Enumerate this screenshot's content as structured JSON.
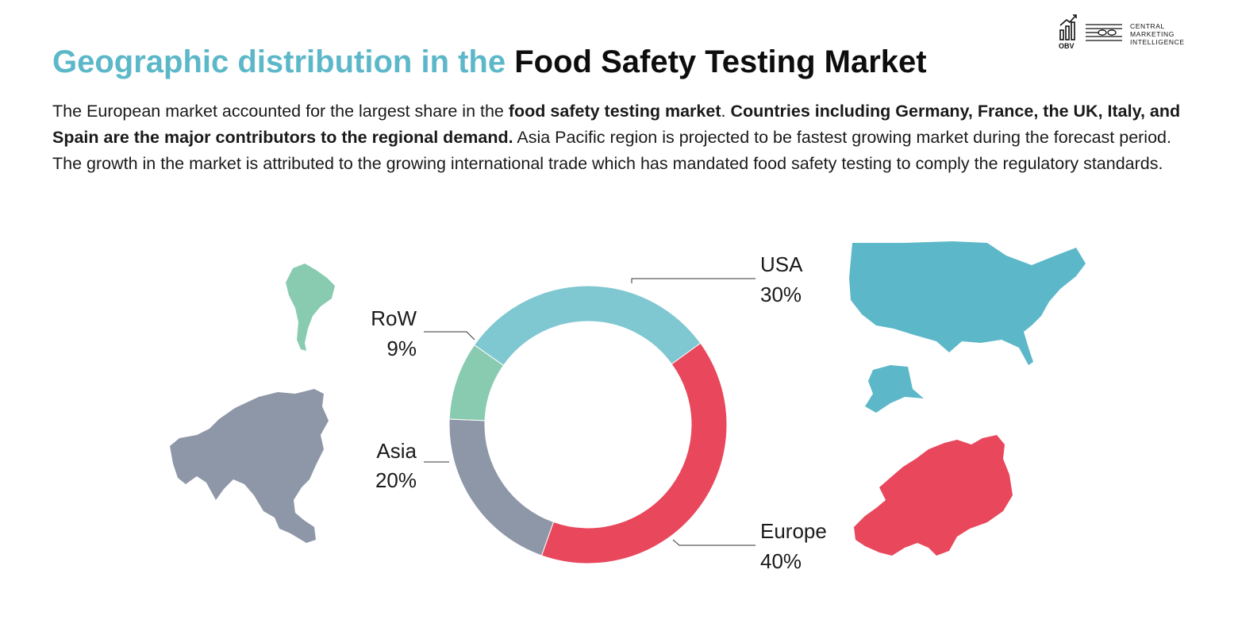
{
  "logo": {
    "line1": "CENTRAL",
    "line2": "MARKETING",
    "line3": "INTELLIGENCE",
    "obv": "OBV"
  },
  "title": {
    "accent": "Geographic distribution in the",
    "main": "Food Safety Testing Market"
  },
  "description": {
    "p1": "The European market accounted for the largest share in the ",
    "b1": "food safety testing market",
    "p2": ". ",
    "b2": "Countries including Germany, France, the UK, Italy, and Spain are the major contributors to the regional demand.",
    "p3": " Asia Pacific region is projected to be fastest growing market during the forecast period. The growth in the market is attributed to the growing international trade which has mandated food safety testing to comply the regulatory standards."
  },
  "colors": {
    "accent": "#5cb8c9",
    "usa": "#7fc7d1",
    "europe": "#e8475c",
    "asia": "#8e97a8",
    "row": "#88cbb0"
  },
  "chart_data": {
    "type": "pie",
    "style": "donut",
    "categories": [
      "USA",
      "Europe",
      "Asia",
      "RoW"
    ],
    "values": [
      30,
      40,
      20,
      9
    ],
    "labels": [
      "30%",
      "40%",
      "20%",
      "9%"
    ],
    "colors": [
      "#7fc7d1",
      "#e8475c",
      "#8e97a8",
      "#88cbb0"
    ],
    "title": "",
    "xlabel": "",
    "ylabel": ""
  }
}
